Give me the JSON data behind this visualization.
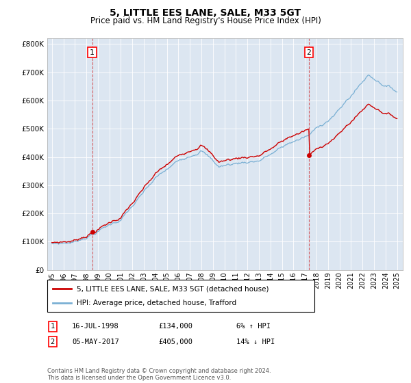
{
  "title": "5, LITTLE EES LANE, SALE, M33 5GT",
  "subtitle": "Price paid vs. HM Land Registry's House Price Index (HPI)",
  "ylim": [
    0,
    820000
  ],
  "yticks": [
    0,
    100000,
    200000,
    300000,
    400000,
    500000,
    600000,
    700000,
    800000
  ],
  "ytick_labels": [
    "£0",
    "£100K",
    "£200K",
    "£300K",
    "£400K",
    "£500K",
    "£600K",
    "£700K",
    "£800K"
  ],
  "plot_bg_color": "#dce6f1",
  "hpi_color": "#7ab0d4",
  "price_color": "#cc0000",
  "purchase1_year": 1998.54,
  "purchase1_price": 134000,
  "purchase2_year": 2017.35,
  "purchase2_price": 405000,
  "legend_label1": "5, LITTLE EES LANE, SALE, M33 5GT (detached house)",
  "legend_label2": "HPI: Average price, detached house, Trafford",
  "note1_date": "16-JUL-1998",
  "note1_price": "£134,000",
  "note1_hpi": "6% ↑ HPI",
  "note2_date": "05-MAY-2017",
  "note2_price": "£405,000",
  "note2_hpi": "14% ↓ HPI",
  "footer": "Contains HM Land Registry data © Crown copyright and database right 2024.\nThis data is licensed under the Open Government Licence v3.0.",
  "xstart": 1995,
  "xend": 2025,
  "num_points": 361
}
